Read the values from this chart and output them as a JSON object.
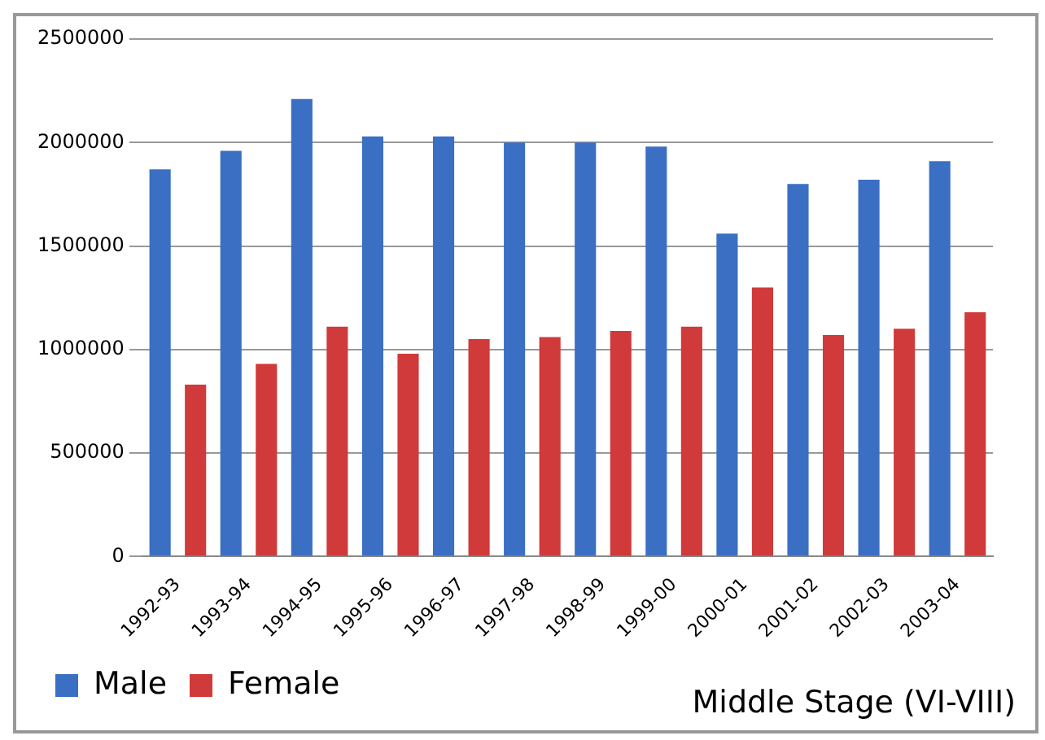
{
  "chart_data": {
    "type": "bar",
    "title": "Middle Stage (VI-VIII)",
    "categories": [
      "1992-93",
      "1993-94",
      "1994-95",
      "1995-96",
      "1996-97",
      "1997-98",
      "1998-99",
      "1999-00",
      "2000-01",
      "2001-02",
      "2002-03",
      "2003-04"
    ],
    "series": [
      {
        "name": "Male",
        "color": "#3a6fc4",
        "values": [
          1870000,
          1960000,
          2210000,
          2030000,
          2030000,
          2000000,
          2000000,
          1980000,
          1560000,
          1800000,
          1820000,
          1910000
        ]
      },
      {
        "name": "Female",
        "color": "#d03a3a",
        "values": [
          830000,
          930000,
          1110000,
          980000,
          1050000,
          1060000,
          1090000,
          1110000,
          1300000,
          1070000,
          1100000,
          1180000
        ]
      }
    ],
    "ylim": [
      0,
      2500000
    ],
    "yticks": [
      0,
      500000,
      1000000,
      1500000,
      2000000,
      2500000
    ],
    "grid": "y",
    "legend": "bottom left"
  }
}
